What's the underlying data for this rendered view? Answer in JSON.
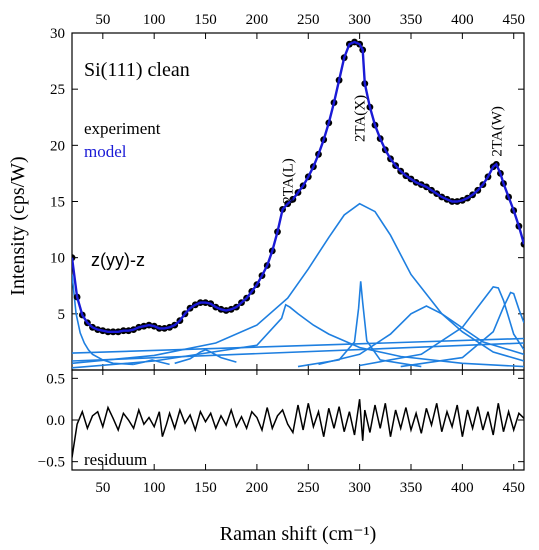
{
  "chart_data": [
    {
      "type": "line",
      "panel": "main",
      "xlabel": "Raman shift (cm⁻¹)",
      "ylabel": "Intensity (cps/W)",
      "xlim": [
        20,
        460
      ],
      "ylim": [
        0,
        30
      ],
      "x_ticks": [
        50,
        100,
        150,
        200,
        250,
        300,
        350,
        400,
        450
      ],
      "x_ticks_top": [
        50,
        100,
        150,
        200,
        250,
        300,
        350,
        400,
        450
      ],
      "y_ticks": [
        5,
        10,
        15,
        20,
        25,
        30
      ],
      "grid": false,
      "legend": {
        "placement": "top-left",
        "entries": [
          {
            "label": "experiment",
            "color": "#000000"
          },
          {
            "label": "model",
            "color": "#1a1ad6"
          }
        ]
      },
      "annotations": {
        "sample": "Si(111) clean",
        "geometry": "z(yy)-z",
        "peak_labels": [
          {
            "text": "2TA(L)",
            "x": 230,
            "y": 14.8
          },
          {
            "text": "2TA(X)",
            "x": 300,
            "y": 20.3
          },
          {
            "text": "2TA(W)",
            "x": 433,
            "y": 19.0
          }
        ]
      },
      "series": [
        {
          "name": "experiment",
          "color": "#000000",
          "style": "markers",
          "x": [
            20,
            25,
            30,
            35,
            40,
            45,
            50,
            55,
            60,
            65,
            70,
            75,
            80,
            85,
            90,
            95,
            100,
            105,
            110,
            115,
            120,
            125,
            130,
            135,
            140,
            145,
            150,
            155,
            160,
            165,
            170,
            175,
            180,
            185,
            190,
            195,
            200,
            205,
            210,
            215,
            220,
            225,
            230,
            235,
            240,
            245,
            250,
            255,
            260,
            265,
            270,
            275,
            280,
            285,
            290,
            295,
            300,
            303,
            305,
            310,
            315,
            320,
            325,
            330,
            335,
            340,
            345,
            350,
            355,
            360,
            365,
            370,
            375,
            380,
            385,
            390,
            395,
            400,
            405,
            410,
            415,
            420,
            425,
            430,
            433,
            437,
            440,
            445,
            450,
            455,
            460
          ],
          "y": [
            10.0,
            6.5,
            4.9,
            4.2,
            3.8,
            3.6,
            3.5,
            3.4,
            3.4,
            3.4,
            3.5,
            3.5,
            3.6,
            3.8,
            3.9,
            4.0,
            3.9,
            3.7,
            3.7,
            3.8,
            4.0,
            4.4,
            5.0,
            5.5,
            5.8,
            6.0,
            6.0,
            5.9,
            5.6,
            5.4,
            5.3,
            5.4,
            5.6,
            6.0,
            6.4,
            7.0,
            7.6,
            8.4,
            9.3,
            10.6,
            12.3,
            14.3,
            14.8,
            15.2,
            15.8,
            16.4,
            17.2,
            18.1,
            19.2,
            20.5,
            22.0,
            23.8,
            25.8,
            27.8,
            29.0,
            29.2,
            29.0,
            28.5,
            25.5,
            23.4,
            21.8,
            20.6,
            19.6,
            18.8,
            18.2,
            17.7,
            17.3,
            17.0,
            16.7,
            16.5,
            16.3,
            16.0,
            15.7,
            15.4,
            15.2,
            15.0,
            15.0,
            15.1,
            15.3,
            15.6,
            16.0,
            16.5,
            17.2,
            18.1,
            18.3,
            17.5,
            16.6,
            15.4,
            14.2,
            12.8,
            11.2
          ]
        },
        {
          "name": "model",
          "color": "#1a1ad6",
          "style": "line",
          "x": [
            20,
            25,
            30,
            35,
            40,
            45,
            50,
            55,
            60,
            65,
            70,
            75,
            80,
            85,
            90,
            95,
            100,
            105,
            110,
            115,
            120,
            125,
            130,
            135,
            140,
            145,
            150,
            155,
            160,
            165,
            170,
            175,
            180,
            185,
            190,
            195,
            200,
            205,
            210,
            215,
            220,
            225,
            230,
            235,
            240,
            245,
            250,
            255,
            260,
            265,
            270,
            275,
            280,
            285,
            290,
            295,
            300,
            303,
            305,
            310,
            315,
            320,
            325,
            330,
            335,
            340,
            345,
            350,
            355,
            360,
            365,
            370,
            375,
            380,
            385,
            390,
            395,
            400,
            405,
            410,
            415,
            420,
            425,
            430,
            433,
            437,
            440,
            445,
            450,
            455,
            460
          ],
          "y": [
            10.0,
            6.5,
            4.9,
            4.2,
            3.8,
            3.6,
            3.5,
            3.4,
            3.4,
            3.4,
            3.5,
            3.5,
            3.6,
            3.8,
            3.9,
            4.0,
            3.9,
            3.7,
            3.7,
            3.8,
            4.0,
            4.4,
            5.0,
            5.5,
            5.8,
            6.0,
            6.0,
            5.9,
            5.6,
            5.4,
            5.3,
            5.4,
            5.6,
            6.0,
            6.4,
            7.0,
            7.6,
            8.4,
            9.3,
            10.6,
            12.3,
            14.3,
            14.8,
            15.2,
            15.8,
            16.4,
            17.2,
            18.1,
            19.2,
            20.5,
            22.0,
            23.8,
            25.8,
            27.8,
            29.0,
            29.2,
            29.0,
            28.5,
            25.5,
            23.4,
            21.8,
            20.6,
            19.6,
            18.8,
            18.2,
            17.7,
            17.3,
            17.0,
            16.7,
            16.5,
            16.3,
            16.0,
            15.7,
            15.4,
            15.2,
            15.0,
            15.0,
            15.1,
            15.3,
            15.6,
            16.0,
            16.5,
            17.2,
            18.1,
            18.3,
            17.5,
            16.6,
            15.4,
            14.2,
            12.8,
            11.2
          ]
        }
      ],
      "components": {
        "color": "#1e7fe0",
        "curves": [
          {
            "x": [
              20,
              24,
              28,
              32,
              36,
              40,
              50,
              60,
              80
            ],
            "y": [
              8.5,
              5.0,
              3.3,
              2.4,
              1.8,
              1.4,
              0.9,
              0.6,
              0.5
            ]
          },
          {
            "x": [
              80,
              90,
              98,
              106,
              115
            ],
            "y": [
              0.5,
              0.7,
              0.9,
              0.7,
              0.5
            ]
          },
          {
            "x": [
              120,
              135,
              145,
              150,
              155,
              165,
              180
            ],
            "y": [
              0.6,
              1.0,
              1.6,
              1.8,
              1.6,
              1.1,
              0.7
            ]
          },
          {
            "x": [
              20,
              460
            ],
            "y": [
              1.5,
              2.8
            ]
          },
          {
            "x": [
              20,
              460
            ],
            "y": [
              0.8,
              2.4
            ]
          },
          {
            "x": [
              20,
              100,
              200,
              224,
              228,
              232,
              240,
              255,
              270,
              300,
              340,
              400,
              460
            ],
            "y": [
              0.2,
              0.8,
              2.2,
              4.6,
              5.8,
              5.6,
              5.0,
              4.0,
              3.2,
              2.0,
              1.2,
              0.6,
              0.3
            ]
          },
          {
            "x": [
              20,
              100,
              160,
              200,
              230,
              250,
              270,
              285,
              300,
              315,
              330,
              350,
              380,
              420,
              460
            ],
            "y": [
              0.6,
              1.3,
              2.4,
              4.0,
              6.4,
              9.0,
              11.8,
              13.8,
              14.8,
              14.1,
              12.0,
              8.5,
              5.0,
              2.5,
              1.4
            ]
          },
          {
            "x": [
              240,
              280,
              295,
              299,
              301,
              303,
              307,
              320,
              360
            ],
            "y": [
              0.3,
              0.9,
              2.5,
              5.5,
              7.9,
              6.0,
              2.6,
              0.9,
              0.3
            ]
          },
          {
            "x": [
              260,
              300,
              330,
              350,
              365,
              380,
              400,
              430,
              460
            ],
            "y": [
              0.5,
              1.4,
              3.2,
              5.0,
              5.7,
              5.0,
              3.4,
              1.6,
              0.8
            ]
          },
          {
            "x": [
              300,
              360,
              400,
              420,
              430,
              435,
              440,
              450,
              460
            ],
            "y": [
              0.4,
              1.4,
              3.8,
              6.2,
              7.4,
              7.3,
              6.2,
              3.2,
              1.8
            ]
          },
          {
            "x": [
              340,
              400,
              430,
              440,
              447,
              450,
              455,
              460
            ],
            "y": [
              0.3,
              1.1,
              3.4,
              5.6,
              6.9,
              6.8,
              5.4,
              4.2
            ]
          }
        ]
      }
    },
    {
      "type": "line",
      "panel": "residual",
      "xlim": [
        20,
        460
      ],
      "ylim": [
        -0.6,
        0.6
      ],
      "y_ticks": [
        -0.5,
        0.0,
        0.5
      ],
      "y_tick_labels": [
        "−0.5",
        "0.0",
        "0.5"
      ],
      "annotations": {
        "label": "residuum"
      },
      "series": [
        {
          "color": "#000000",
          "x": [
            20,
            25,
            30,
            35,
            40,
            45,
            50,
            55,
            60,
            65,
            70,
            75,
            80,
            85,
            90,
            95,
            100,
            105,
            108,
            112,
            115,
            120,
            125,
            130,
            135,
            140,
            145,
            150,
            155,
            160,
            165,
            170,
            175,
            180,
            185,
            190,
            195,
            200,
            205,
            210,
            215,
            220,
            225,
            230,
            235,
            240,
            245,
            250,
            255,
            260,
            265,
            270,
            275,
            280,
            285,
            290,
            295,
            300,
            303,
            305,
            310,
            315,
            320,
            325,
            330,
            335,
            340,
            345,
            350,
            355,
            360,
            365,
            370,
            375,
            380,
            385,
            390,
            395,
            400,
            405,
            410,
            415,
            420,
            425,
            430,
            435,
            440,
            445,
            450,
            455,
            460
          ],
          "y": [
            -0.45,
            -0.05,
            0.1,
            -0.1,
            0.05,
            0.1,
            -0.08,
            0.15,
            0.02,
            -0.12,
            0.08,
            0.0,
            -0.1,
            0.12,
            -0.05,
            0.03,
            -0.08,
            0.1,
            -0.2,
            -0.05,
            0.08,
            -0.1,
            0.12,
            -0.04,
            0.06,
            -0.12,
            0.1,
            -0.02,
            0.08,
            -0.1,
            0.05,
            -0.06,
            0.12,
            -0.08,
            0.04,
            -0.1,
            0.1,
            0.03,
            -0.12,
            0.15,
            -0.1,
            0.05,
            0.12,
            -0.05,
            -0.15,
            0.18,
            -0.12,
            0.2,
            -0.08,
            0.1,
            -0.2,
            0.14,
            -0.1,
            0.16,
            -0.14,
            0.1,
            -0.18,
            0.25,
            -0.25,
            0.12,
            -0.15,
            0.18,
            -0.1,
            0.2,
            -0.2,
            0.12,
            -0.1,
            0.15,
            -0.12,
            0.08,
            -0.16,
            0.14,
            -0.06,
            0.2,
            -0.14,
            0.1,
            -0.08,
            0.18,
            -0.2,
            0.12,
            -0.1,
            0.16,
            -0.12,
            0.1,
            -0.18,
            0.2,
            -0.14,
            0.1,
            -0.12,
            0.08,
            0.02
          ]
        }
      ]
    }
  ]
}
